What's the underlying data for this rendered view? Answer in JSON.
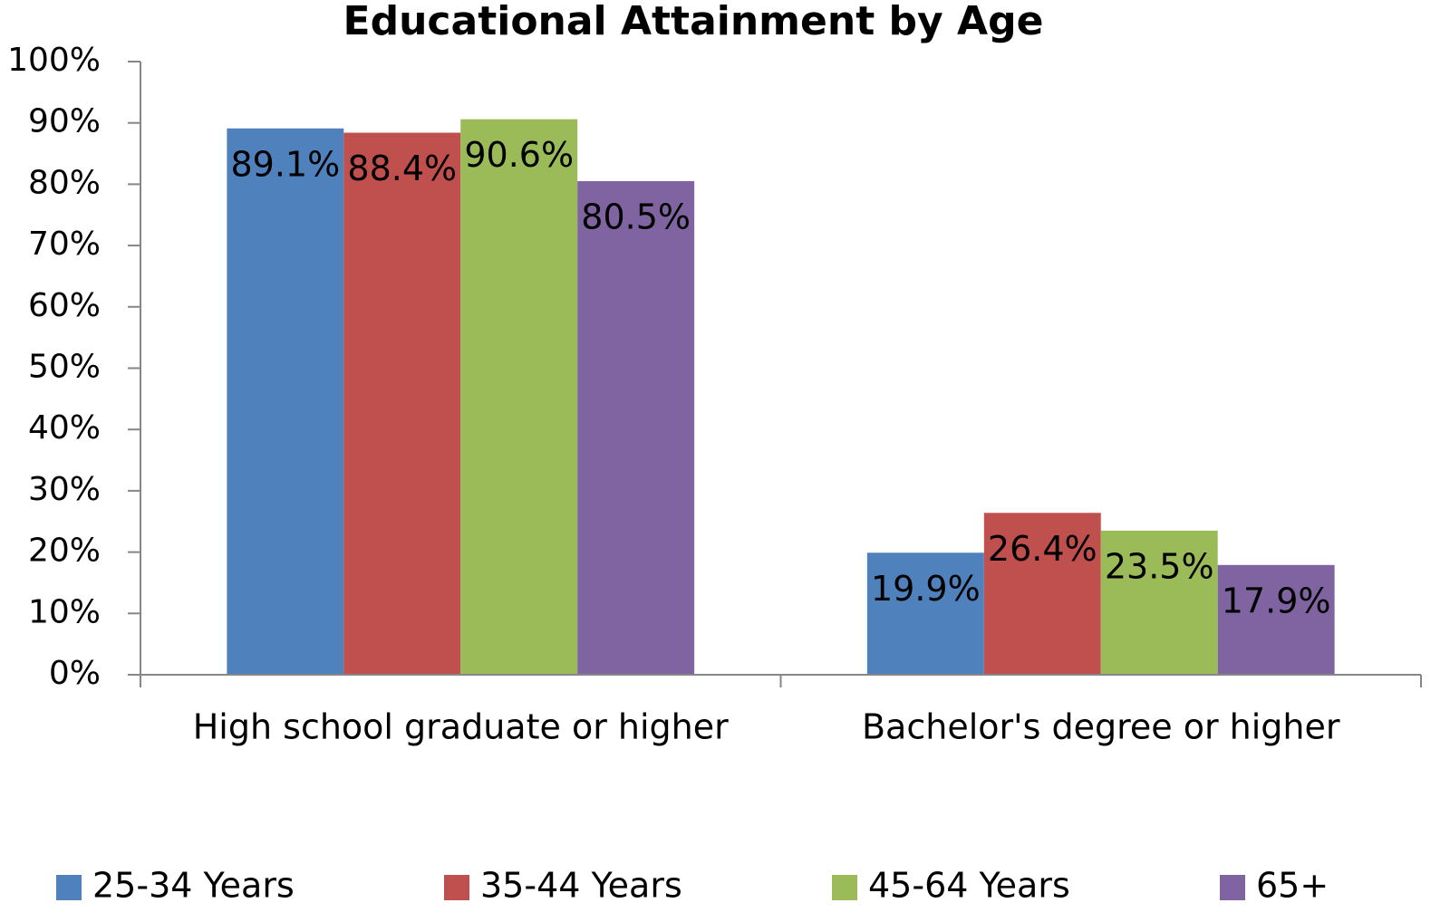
{
  "chart_data": {
    "type": "bar",
    "title": "Educational Attainment by Age",
    "categories": [
      "High school graduate or higher",
      "Bachelor's degree or higher"
    ],
    "series": [
      {
        "name": "25-34 Years",
        "color": "#4f81bd",
        "values": [
          89.1,
          19.9
        ],
        "value_labels": [
          "89.1%",
          "19.9%"
        ]
      },
      {
        "name": "35-44 Years",
        "color": "#c0504d",
        "values": [
          88.4,
          26.4
        ],
        "value_labels": [
          "88.4%",
          "26.4%"
        ]
      },
      {
        "name": "45-64 Years",
        "color": "#9bbb59",
        "values": [
          90.6,
          23.5
        ],
        "value_labels": [
          "90.6%",
          "23.5%"
        ]
      },
      {
        "name": "65+",
        "color": "#8064a2",
        "values": [
          80.5,
          17.9
        ],
        "value_labels": [
          "80.5%",
          "17.9%"
        ]
      }
    ],
    "ylim": [
      0,
      100
    ],
    "yticks": [
      {
        "value": 0,
        "label": "0%"
      },
      {
        "value": 10,
        "label": "10%"
      },
      {
        "value": 20,
        "label": "20%"
      },
      {
        "value": 30,
        "label": "30%"
      },
      {
        "value": 40,
        "label": "40%"
      },
      {
        "value": 50,
        "label": "50%"
      },
      {
        "value": 60,
        "label": "60%"
      },
      {
        "value": 70,
        "label": "70%"
      },
      {
        "value": 80,
        "label": "80%"
      },
      {
        "value": 90,
        "label": "90%"
      },
      {
        "value": 100,
        "label": "100%"
      }
    ],
    "grid": false,
    "legend": "bottom"
  }
}
